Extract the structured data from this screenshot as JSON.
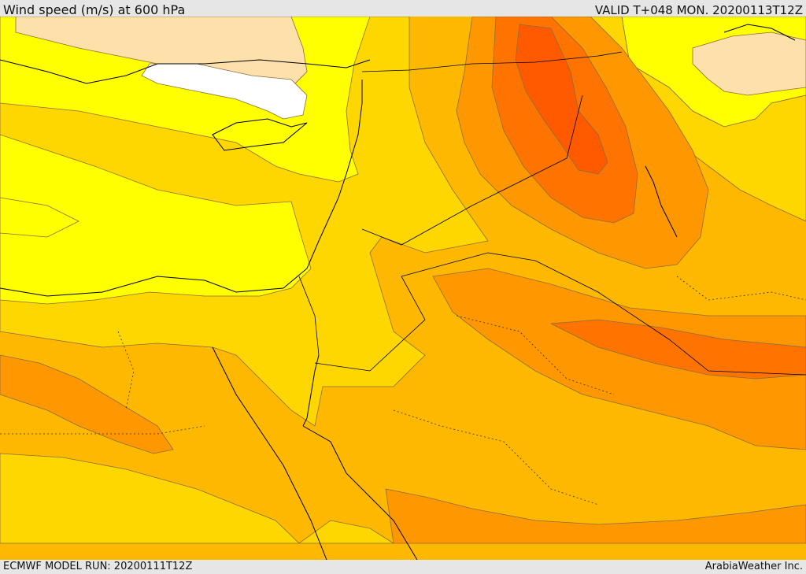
{
  "header": {
    "title": "Wind speed (m/s) at 600 hPa",
    "valid": "VALID T+048 MON. 20200113T12Z"
  },
  "footer": {
    "model_run": "ECMWF MODEL RUN: 20200111T12Z",
    "credit": "ArabiaWeather Inc."
  },
  "colors": {
    "below_threshold": "#ffffff",
    "band_1": "#fde0aa",
    "band_2": "#ffff00",
    "band_3": "#ffd700",
    "band_4": "#ffb800",
    "band_5": "#ff9800",
    "band_6": "#ff7400",
    "band_7": "#ff5a00"
  }
}
